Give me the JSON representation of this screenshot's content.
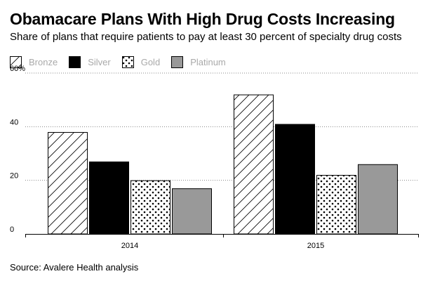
{
  "title": "Obamacare Plans With High Drug Costs Increasing",
  "subtitle": "Share of plans that require patients to pay at least 30 percent of specialty drug costs",
  "source": "Source: Avalere Health analysis",
  "legend": [
    {
      "label": "Bronze",
      "pattern": "hatch"
    },
    {
      "label": "Silver",
      "pattern": "solid-black"
    },
    {
      "label": "Gold",
      "pattern": "dots"
    },
    {
      "label": "Platinum",
      "pattern": "solid-gray"
    }
  ],
  "chart_data": {
    "type": "bar",
    "title": "Obamacare Plans With High Drug Costs Increasing",
    "subtitle": "Share of plans that require patients to pay at least 30 percent of specialty drug costs",
    "categories": [
      "2014",
      "2015"
    ],
    "series": [
      {
        "name": "Bronze",
        "values": [
          38,
          52
        ]
      },
      {
        "name": "Silver",
        "values": [
          27,
          41
        ]
      },
      {
        "name": "Gold",
        "values": [
          20,
          22
        ]
      },
      {
        "name": "Platinum",
        "values": [
          17,
          26
        ]
      }
    ],
    "ylim": [
      0,
      60
    ],
    "yticks": [
      0,
      20,
      40,
      60
    ],
    "ytick_labels": [
      "0",
      "20",
      "40",
      "60%"
    ],
    "xlabel": "",
    "ylabel": "",
    "grid": "dotted horizontal",
    "legend_position": "top-left",
    "colors": {
      "Silver": "#000000",
      "Platinum": "#999999",
      "hatch": "#000000",
      "grid": "#888888"
    }
  }
}
